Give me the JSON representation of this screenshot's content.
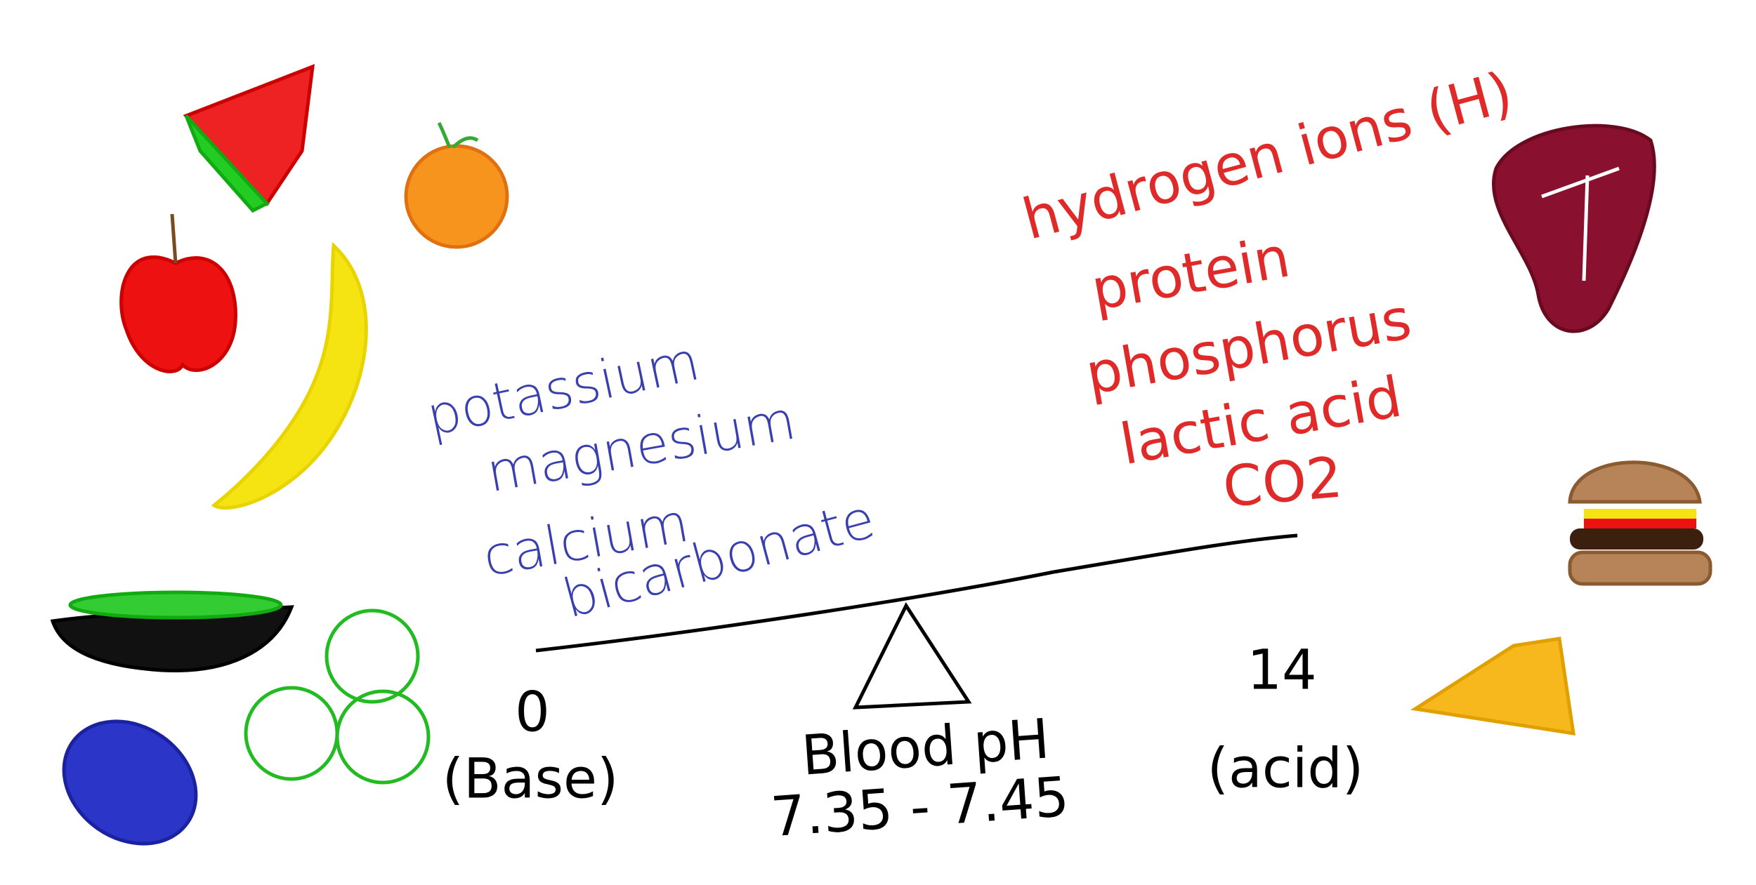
{
  "base_side": {
    "substances": [
      "potassium",
      "magnesium",
      "calcium",
      "bicarbonate"
    ],
    "scale_value": 0,
    "label": "(Base)"
  },
  "acid_side": {
    "substances": [
      "hydrogen ions (H)",
      "protein",
      "phosphorus",
      "lactic acid",
      "CO2"
    ],
    "scale_value": 14,
    "label": "(acid)"
  },
  "fulcrum": {
    "label": "Blood pH",
    "range": "7.35 - 7.45"
  }
}
